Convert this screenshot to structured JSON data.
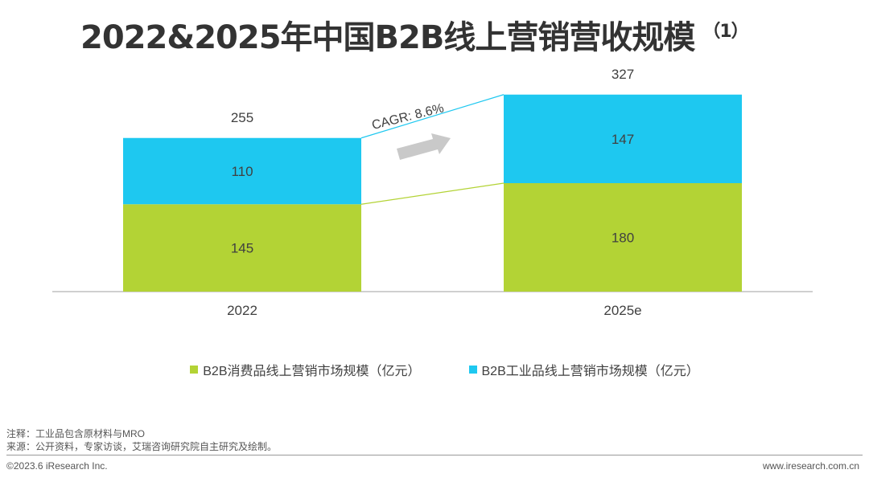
{
  "title": {
    "main": "2022&2025年中国B2B线上营销营收规模",
    "superscript": "（1）"
  },
  "chart_data": {
    "type": "bar",
    "stacked": true,
    "categories": [
      "2022",
      "2025e"
    ],
    "series": [
      {
        "name": "B2B消费品线上营销市场规模（亿元）",
        "values": [
          145,
          180
        ],
        "color": "#b3d335"
      },
      {
        "name": "B2B工业品线上营销市场规模（亿元）",
        "values": [
          110,
          147
        ],
        "color": "#1ec8f0"
      }
    ],
    "totals": [
      255,
      327
    ],
    "annotation": "CAGR: 8.6%",
    "ylim": [
      0,
      400
    ],
    "legend_position": "bottom-center"
  },
  "legend": [
    {
      "label": "B2B消费品线上营销市场规模（亿元）",
      "color": "#b3d335"
    },
    {
      "label": "B2B工业品线上营销市场规模（亿元）",
      "color": "#1ec8f0"
    }
  ],
  "notes": {
    "line1": "注释：工业品包含原材料与MRO",
    "line2": "来源：公开资料，专家访谈，艾瑞咨询研究院自主研究及绘制。"
  },
  "footer": {
    "copyright": "©2023.6 iResearch Inc.",
    "website": "www.iresearch.com.cn"
  },
  "colors": {
    "arrow": "#c9c9c9",
    "axis": "#bfbfbf"
  }
}
